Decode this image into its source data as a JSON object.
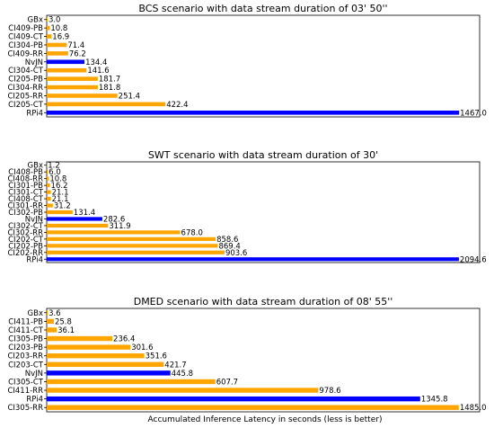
{
  "x_label": "Accumulated Inference Latency in seconds (less is better)",
  "colors": {
    "orange": "#FFA500",
    "blue": "#0000FF"
  },
  "chart_data": [
    {
      "type": "bar",
      "orientation": "horizontal",
      "title": "BCS scenario with data stream duration of 03' 50''",
      "xlim": [
        0,
        1540
      ],
      "categories": [
        "GBx",
        "CI409-PB",
        "CI409-CT",
        "CI304-PB",
        "CI409-RR",
        "NvJN",
        "CI304-CT",
        "CI205-PB",
        "CI304-RR",
        "CI205-RR",
        "CI205-CT",
        "RPi4"
      ],
      "values": [
        3.0,
        10.8,
        16.9,
        71.4,
        76.2,
        134.4,
        141.6,
        181.7,
        181.8,
        251.4,
        422.4,
        1467.0
      ],
      "labels": [
        "3.0",
        "10.8",
        "16.9",
        "71.4",
        "76.2",
        "134.4",
        "141.6",
        "181.7",
        "181.8",
        "251.4",
        "422.4",
        "1467.0"
      ],
      "bar_colors": [
        "orange",
        "orange",
        "orange",
        "orange",
        "orange",
        "blue",
        "orange",
        "orange",
        "orange",
        "orange",
        "orange",
        "blue"
      ]
    },
    {
      "type": "bar",
      "orientation": "horizontal",
      "title": "SWT scenario with data stream duration of 30'",
      "xlim": [
        0,
        2200
      ],
      "categories": [
        "GBx",
        "CI408-PB",
        "CI408-RR",
        "CI301-PB",
        "CI301-CT",
        "CI408-CT",
        "CI301-RR",
        "CI302-PB",
        "NvJN",
        "CI302-CT",
        "CI302-RR",
        "CI202-CT",
        "CI202-PB",
        "CI202-RR",
        "RPi4"
      ],
      "values": [
        1.2,
        6.0,
        10.8,
        16.2,
        21.1,
        21.1,
        31.2,
        131.4,
        282.6,
        311.9,
        678.0,
        858.6,
        869.4,
        903.6,
        2094.6
      ],
      "labels": [
        "1.2",
        "6.0",
        "10.8",
        "16.2",
        "21.1",
        "21.1",
        "31.2",
        "131.4",
        "282.6",
        "311.9",
        "678.0",
        "858.6",
        "869.4",
        "903.6",
        "2094.6"
      ],
      "bar_colors": [
        "orange",
        "orange",
        "orange",
        "orange",
        "orange",
        "orange",
        "orange",
        "orange",
        "blue",
        "orange",
        "orange",
        "orange",
        "orange",
        "orange",
        "blue"
      ]
    },
    {
      "type": "bar",
      "orientation": "horizontal",
      "title": "DMED scenario with data stream duration of 08' 55''",
      "xlim": [
        0,
        1560
      ],
      "categories": [
        "GBx",
        "CI411-PB",
        "CI411-CT",
        "CI305-PB",
        "CI203-PB",
        "CI203-RR",
        "CI203-CT",
        "NvJN",
        "CI305-CT",
        "CI411-RR",
        "RPi4",
        "CI305-RR"
      ],
      "values": [
        3.6,
        25.8,
        36.1,
        236.4,
        301.6,
        351.6,
        421.7,
        445.8,
        607.7,
        978.6,
        1345.8,
        1485.0
      ],
      "labels": [
        "3.6",
        "25.8",
        "36.1",
        "236.4",
        "301.6",
        "351.6",
        "421.7",
        "445.8",
        "607.7",
        "978.6",
        "1345.8",
        "1485.0"
      ],
      "bar_colors": [
        "orange",
        "orange",
        "orange",
        "orange",
        "orange",
        "orange",
        "orange",
        "blue",
        "orange",
        "orange",
        "blue",
        "orange"
      ]
    }
  ]
}
